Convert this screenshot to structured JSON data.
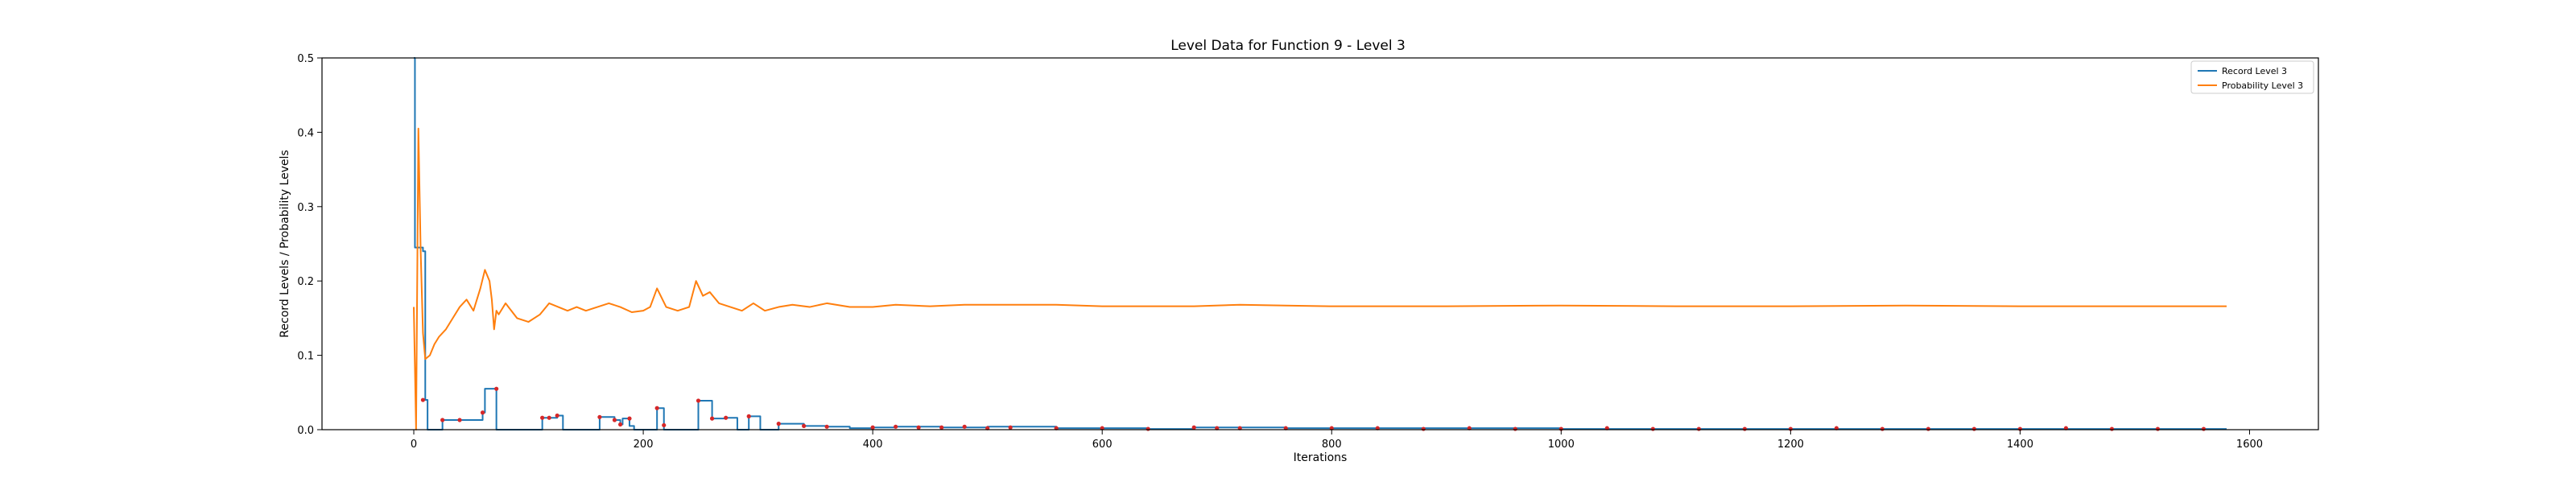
{
  "chart_data": {
    "type": "line",
    "title": "Level Data for Function 9 - Level 3",
    "xlabel": "Iterations",
    "ylabel": "Record Levels / Probability Levels",
    "xlim": [
      -80,
      1660
    ],
    "ylim": [
      0,
      0.5
    ],
    "xticks": [
      0,
      200,
      400,
      600,
      800,
      1000,
      1200,
      1400,
      1600
    ],
    "yticks": [
      0.0,
      0.1,
      0.2,
      0.3,
      0.4,
      0.5
    ],
    "xtick_labels": [
      "0",
      "200",
      "400",
      "600",
      "800",
      "1000",
      "1200",
      "1400",
      "1600"
    ],
    "ytick_labels": [
      "0.0",
      "0.1",
      "0.2",
      "0.3",
      "0.4",
      "0.5"
    ],
    "grid": false,
    "legend_position": "top-right",
    "colors": {
      "record": "#1f77b4",
      "probability": "#ff7f0e",
      "markers": "#d62728"
    },
    "series": [
      {
        "name": "Record Level 3",
        "style": "step",
        "color": "#1f77b4",
        "x": [
          0,
          1,
          2,
          8,
          10,
          12,
          25,
          40,
          60,
          62,
          72,
          112,
          118,
          125,
          130,
          162,
          175,
          180,
          182,
          188,
          192,
          212,
          218,
          248,
          260,
          272,
          282,
          292,
          302,
          318,
          340,
          360,
          380,
          400,
          420,
          460,
          500,
          560,
          640,
          680,
          760,
          840,
          900,
          1000,
          1100,
          1200,
          1300,
          1400,
          1500,
          1580
        ],
        "values": [
          0.5,
          0.245,
          0.245,
          0.24,
          0.04,
          0.0,
          0.013,
          0.013,
          0.023,
          0.055,
          0.0,
          0.016,
          0.016,
          0.019,
          0.0,
          0.017,
          0.013,
          0.007,
          0.015,
          0.005,
          0.0,
          0.029,
          0.0,
          0.039,
          0.015,
          0.016,
          0.0,
          0.018,
          0.0,
          0.008,
          0.005,
          0.004,
          0.002,
          0.003,
          0.004,
          0.003,
          0.004,
          0.002,
          0.001,
          0.003,
          0.002,
          0.002,
          0.002,
          0.001,
          0.001,
          0.001,
          0.001,
          0.001,
          0.001,
          0.001
        ]
      },
      {
        "name": "Probability Level 3",
        "color": "#ff7f0e",
        "x": [
          0,
          2,
          4,
          6,
          8,
          10,
          14,
          18,
          22,
          28,
          34,
          40,
          46,
          52,
          58,
          62,
          66,
          68,
          70,
          72,
          74,
          80,
          90,
          100,
          110,
          118,
          126,
          134,
          142,
          150,
          160,
          170,
          180,
          190,
          200,
          206,
          212,
          220,
          230,
          240,
          246,
          252,
          258,
          266,
          276,
          286,
          296,
          306,
          318,
          330,
          345,
          360,
          380,
          400,
          420,
          450,
          480,
          520,
          560,
          600,
          640,
          680,
          720,
          760,
          800,
          900,
          1000,
          1100,
          1200,
          1300,
          1400,
          1500,
          1580
        ],
        "values": [
          0.165,
          0.0,
          0.405,
          0.24,
          0.13,
          0.095,
          0.1,
          0.115,
          0.125,
          0.135,
          0.15,
          0.165,
          0.175,
          0.16,
          0.19,
          0.215,
          0.2,
          0.175,
          0.135,
          0.16,
          0.155,
          0.17,
          0.15,
          0.145,
          0.155,
          0.17,
          0.165,
          0.16,
          0.165,
          0.16,
          0.165,
          0.17,
          0.165,
          0.158,
          0.16,
          0.165,
          0.19,
          0.165,
          0.16,
          0.165,
          0.2,
          0.18,
          0.185,
          0.17,
          0.165,
          0.16,
          0.17,
          0.16,
          0.165,
          0.168,
          0.165,
          0.17,
          0.165,
          0.165,
          0.168,
          0.166,
          0.168,
          0.168,
          0.168,
          0.166,
          0.166,
          0.166,
          0.168,
          0.167,
          0.166,
          0.166,
          0.167,
          0.166,
          0.166,
          0.167,
          0.166,
          0.166,
          0.166
        ]
      }
    ],
    "markers": {
      "color": "#d62728",
      "x": [
        8,
        25,
        40,
        60,
        72,
        112,
        118,
        125,
        162,
        175,
        180,
        188,
        212,
        218,
        248,
        260,
        272,
        292,
        318,
        340,
        360,
        400,
        420,
        440,
        460,
        480,
        500,
        520,
        560,
        600,
        640,
        680,
        700,
        720,
        760,
        800,
        840,
        880,
        920,
        960,
        1000,
        1040,
        1080,
        1120,
        1160,
        1200,
        1240,
        1280,
        1320,
        1360,
        1400,
        1440,
        1480,
        1520,
        1560
      ],
      "values": [
        0.04,
        0.013,
        0.013,
        0.023,
        0.055,
        0.016,
        0.016,
        0.019,
        0.017,
        0.013,
        0.007,
        0.015,
        0.029,
        0.006,
        0.039,
        0.015,
        0.016,
        0.018,
        0.008,
        0.005,
        0.004,
        0.003,
        0.004,
        0.003,
        0.003,
        0.004,
        0.002,
        0.003,
        0.002,
        0.002,
        0.001,
        0.003,
        0.002,
        0.002,
        0.002,
        0.002,
        0.002,
        0.001,
        0.002,
        0.001,
        0.001,
        0.002,
        0.001,
        0.001,
        0.001,
        0.001,
        0.002,
        0.001,
        0.001,
        0.001,
        0.001,
        0.002,
        0.001,
        0.001,
        0.001
      ]
    }
  }
}
